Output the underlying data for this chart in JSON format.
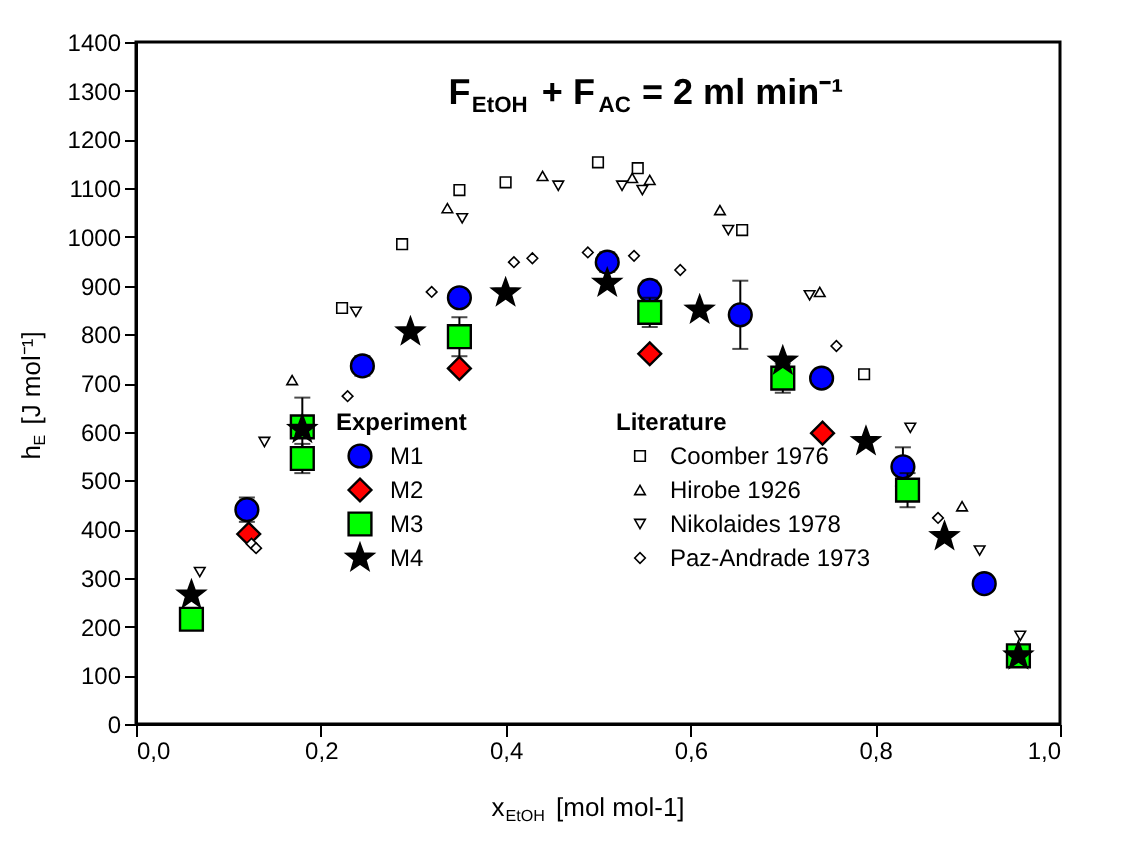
{
  "chart_data": {
    "type": "scatter",
    "title": "F$_{EtOH}$ + F$_{AC}$ = 2 ml min⁻¹",
    "xlabel": "x$_{EtOH}$ [mol mol-1]",
    "ylabel": "h$_{E}$ [J mol⁻¹]",
    "legend_title": "Experiment",
    "annotations": [
      "Literature"
    ],
    "legend": "bottom",
    "xlim": [
      0,
      1
    ],
    "xticks": [
      {
        "value": 0,
        "label": "0,0"
      },
      {
        "value": 0.2,
        "label": "0,2"
      },
      {
        "value": 0.4,
        "label": "0,4"
      },
      {
        "value": 0.6,
        "label": "0,6"
      },
      {
        "value": 0.8,
        "label": "0,8"
      },
      {
        "value": 1,
        "label": "1,0"
      }
    ],
    "ylim": [
      0,
      1400
    ],
    "yticks": [
      0,
      100,
      200,
      300,
      400,
      500,
      600,
      700,
      800,
      900,
      1000,
      1100,
      1200,
      1300,
      1400
    ],
    "grid": false,
    "series": [
      {
        "name": "M1",
        "color": "#0000ff",
        "marker": "circle",
        "x": [
          0.12,
          0.245,
          0.35,
          0.51,
          0.556,
          0.654,
          0.742,
          0.83,
          0.918
        ],
        "values": [
          440,
          735,
          875,
          948,
          890,
          840,
          710,
          528,
          288
        ],
        "errors": [
          25,
          20,
          15,
          20,
          20,
          70,
          15,
          40,
          null
        ]
      },
      {
        "name": "M2",
        "color": "#ff0000",
        "marker": "diamond",
        "x": [
          0.122,
          0.35,
          0.556,
          0.743
        ],
        "values": [
          390,
          730,
          760,
          597
        ]
      },
      {
        "name": "M3",
        "color": "#00ff00",
        "marker": "square",
        "x": [
          0.06,
          0.18,
          0.18,
          0.35,
          0.556,
          0.7,
          0.835,
          0.955
        ],
        "values": [
          215,
          545,
          610,
          795,
          845,
          710,
          480,
          140
        ],
        "errors": [
          null,
          30,
          60,
          40,
          30,
          30,
          35,
          null
        ]
      },
      {
        "name": "M4",
        "color": "#000000",
        "marker": "star",
        "x": [
          0.06,
          0.18,
          0.297,
          0.4,
          0.51,
          0.61,
          0.7,
          0.79,
          0.875,
          0.955
        ],
        "values": [
          265,
          605,
          805,
          885,
          905,
          850,
          745,
          580,
          385,
          140
        ]
      },
      {
        "name": "Coomber 1976",
        "color": "#ffffff",
        "marker": "square",
        "x": [
          0.223,
          0.288,
          0.35,
          0.4,
          0.5,
          0.543,
          0.656,
          0.788
        ],
        "values": [
          854,
          985,
          1096,
          1112,
          1153,
          1141,
          1014,
          718
        ]
      },
      {
        "name": "Hirobe 1926",
        "color": "#ffffff",
        "marker": "triangle",
        "x": [
          0.169,
          0.337,
          0.44,
          0.537,
          0.556,
          0.632,
          0.74,
          0.894
        ],
        "values": [
          706,
          1059,
          1125,
          1121,
          1117,
          1055,
          887,
          447
        ]
      },
      {
        "name": "Nikolaides 1978",
        "color": "#ffffff",
        "marker": "triangle-down",
        "x": [
          0.069,
          0.139,
          0.238,
          0.353,
          0.457,
          0.526,
          0.548,
          0.641,
          0.729,
          0.838,
          0.913,
          0.957
        ],
        "values": [
          312,
          579,
          846,
          1038,
          1105,
          1105,
          1096,
          1014,
          880,
          608,
          356,
          181
        ]
      },
      {
        "name": "Paz-Andrade 1973",
        "color": "#ffffff",
        "marker": "diamond",
        "x": [
          0.125,
          0.13,
          0.229,
          0.32,
          0.409,
          0.429,
          0.489,
          0.539,
          0.589,
          0.758,
          0.868
        ],
        "values": [
          370,
          361,
          673,
          887,
          948,
          956,
          968,
          961,
          932,
          776,
          423
        ]
      }
    ]
  }
}
